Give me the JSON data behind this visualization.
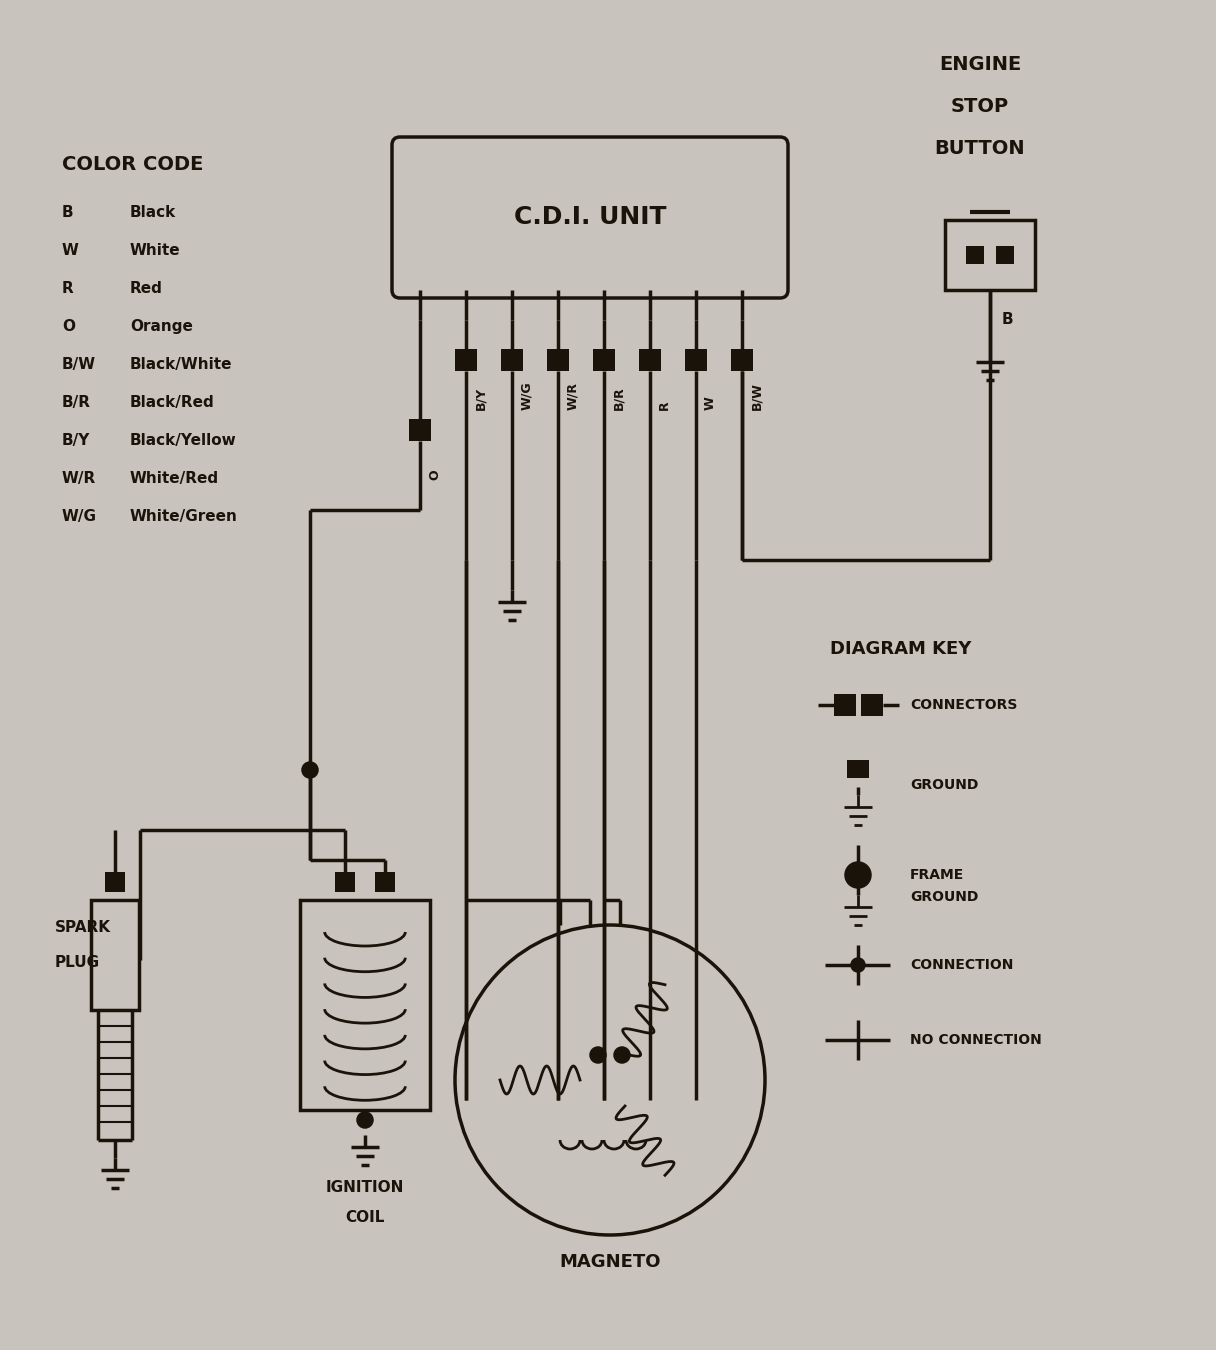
{
  "bg_color": "#c8c3bc",
  "line_color": "#1a130a",
  "color_code_title": "COLOR CODE",
  "color_codes": [
    [
      "B",
      "Black"
    ],
    [
      "W",
      "White"
    ],
    [
      "R",
      "Red"
    ],
    [
      "O",
      "Orange"
    ],
    [
      "B/W",
      "Black/White"
    ],
    [
      "B/R",
      "Black/Red"
    ],
    [
      "B/Y",
      "Black/Yellow"
    ],
    [
      "W/R",
      "White/Red"
    ],
    [
      "W/G",
      "White/Green"
    ]
  ],
  "cdi_label": "C.D.I. UNIT",
  "cdi_pins": [
    "O",
    "B/Y",
    "W/G",
    "W/R",
    "B/R",
    "R",
    "W",
    "B/W"
  ],
  "engine_stop_labels": [
    "ENGINE",
    "STOP",
    "BUTTON"
  ],
  "esb_wire_label": "B",
  "diagram_key_title": "DIAGRAM KEY",
  "diagram_key_items": [
    "CONNECTORS",
    "GROUND",
    "FRAME\nGROUND",
    "CONNECTION",
    "NO CONNECTION"
  ],
  "spark_plug_label": [
    "SPARK",
    "PLUG"
  ],
  "ignition_coil_label": [
    "IGNITION",
    "COIL"
  ],
  "magneto_label": "MAGNETO",
  "figw": 12.16,
  "figh": 13.5,
  "dpi": 100
}
